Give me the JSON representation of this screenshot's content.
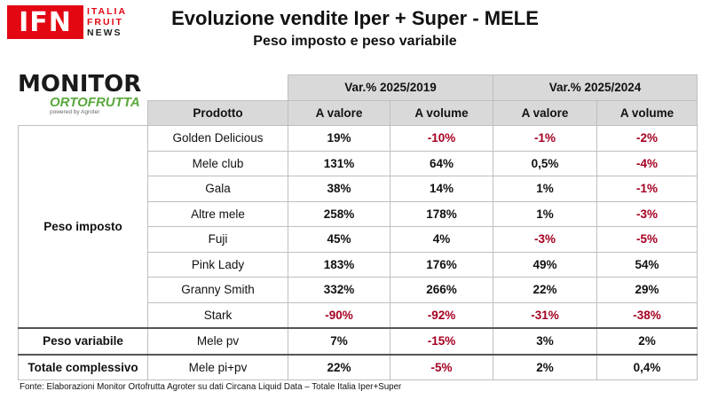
{
  "logo": {
    "ifn": "IFN",
    "line1": "ITALIA",
    "line2": "FRUIT",
    "line3": "NEWS"
  },
  "title": "Evoluzione vendite Iper + Super - MELE",
  "subtitle": "Peso imposto e peso variabile",
  "monitor_logo": {
    "word1": "MONITOR",
    "word2": "ORTOFRUTTA",
    "powered": "powered by Agroter"
  },
  "table": {
    "group_headers": [
      "Var.% 2025/2019",
      "Var.% 2025/2024"
    ],
    "columns": [
      "Prodotto",
      "A valore",
      "A volume",
      "A valore",
      "A volume"
    ],
    "rows": [
      {
        "product": "Golden Delicious",
        "v19": "19%",
        "q19": "-10%",
        "v24": "-1%",
        "q24": "-2%"
      },
      {
        "product": "Mele club",
        "v19": "131%",
        "q19": "64%",
        "v24": "0,5%",
        "q24": "-4%"
      },
      {
        "product": "Gala",
        "v19": "38%",
        "q19": "14%",
        "v24": "1%",
        "q24": "-1%"
      },
      {
        "product": "Altre mele",
        "v19": "258%",
        "q19": "178%",
        "v24": "1%",
        "q24": "-3%"
      },
      {
        "product": "Fuji",
        "v19": "45%",
        "q19": "4%",
        "v24": "-3%",
        "q24": "-5%"
      },
      {
        "product": "Pink Lady",
        "v19": "183%",
        "q19": "176%",
        "v24": "49%",
        "q24": "54%"
      },
      {
        "product": "Granny Smith",
        "v19": "332%",
        "q19": "266%",
        "v24": "22%",
        "q24": "29%"
      },
      {
        "product": "Stark",
        "v19": "-90%",
        "q19": "-92%",
        "v24": "-31%",
        "q24": "-38%"
      },
      {
        "product": "Mele pv",
        "v19": "7%",
        "q19": "-15%",
        "v24": "3%",
        "q24": "2%"
      },
      {
        "product": "Mele pi+pv",
        "v19": "22%",
        "q19": "-5%",
        "v24": "2%",
        "q24": "0,4%"
      }
    ],
    "groups": {
      "peso_imposto": "Peso imposto",
      "peso_variabile": "Peso variabile",
      "totale": "Totale complessivo"
    }
  },
  "footer": "Fonte: Elaborazioni Monitor Ortofrutta Agroter su dati Circana Liquid Data – Totale Italia Iper+Super",
  "colors": {
    "negative": "#a50021",
    "ifn_red": "#e30613",
    "brand_green": "#5aa83c",
    "header_bg": "#d9d9d9"
  }
}
